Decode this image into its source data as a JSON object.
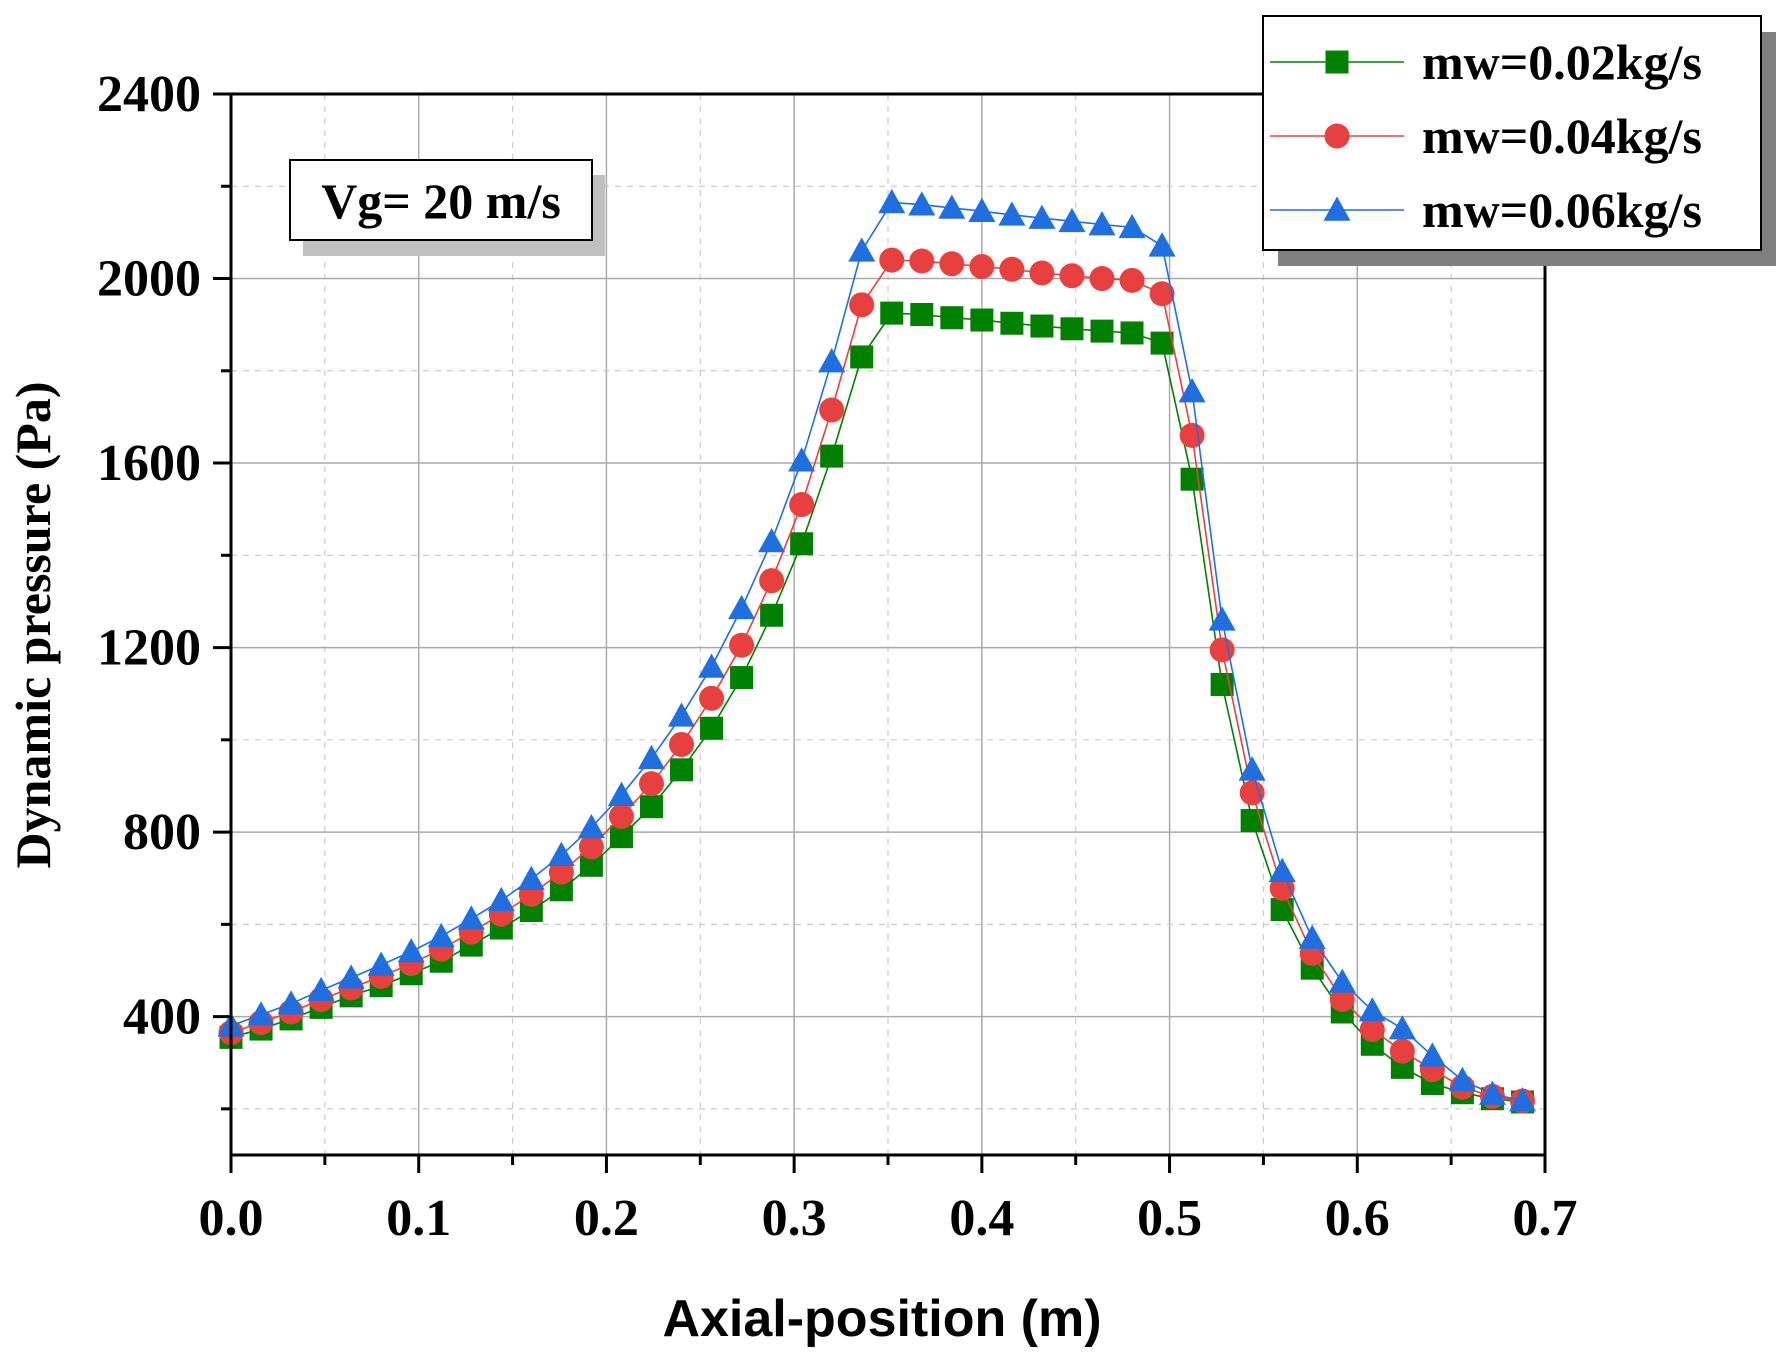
{
  "chart_data": {
    "type": "line",
    "title": "",
    "xlabel": "Axial-position (m)",
    "ylabel": "Dynamic pressure (Pa)",
    "xlim": [
      0,
      0.7
    ],
    "ylim": [
      100,
      2400
    ],
    "xticks": [
      0.0,
      0.1,
      0.2,
      0.3,
      0.4,
      0.5,
      0.6,
      0.7
    ],
    "xtick_labels": [
      "0.0",
      "0.1",
      "0.2",
      "0.3",
      "0.4",
      "0.5",
      "0.6",
      "0.7"
    ],
    "yticks": [
      400,
      800,
      1200,
      1600,
      2000,
      2400
    ],
    "ytick_labels": [
      "400",
      "800",
      "1200",
      "1600",
      "2000",
      "2400"
    ],
    "grid": true,
    "legend_position": "top-right",
    "annotation": "Vg= 20 m/s",
    "x": [
      0.0,
      0.016,
      0.032,
      0.048,
      0.064,
      0.08,
      0.096,
      0.112,
      0.128,
      0.144,
      0.16,
      0.176,
      0.192,
      0.208,
      0.224,
      0.24,
      0.256,
      0.272,
      0.288,
      0.304,
      0.32,
      0.336,
      0.352,
      0.368,
      0.384,
      0.4,
      0.416,
      0.432,
      0.448,
      0.464,
      0.48,
      0.496,
      0.512,
      0.528,
      0.544,
      0.56,
      0.576,
      0.592,
      0.608,
      0.624,
      0.64,
      0.656,
      0.672,
      0.688
    ],
    "series": [
      {
        "name": "mw=0.02kg/s",
        "color": "#008000",
        "marker": "square",
        "values": [
          355,
          373,
          395,
          420,
          445,
          467,
          493,
          520,
          555,
          592,
          630,
          675,
          728,
          790,
          855,
          935,
          1025,
          1135,
          1270,
          1425,
          1615,
          1830,
          1925,
          1922,
          1915,
          1910,
          1903,
          1897,
          1891,
          1886,
          1882,
          1860,
          1565,
          1120,
          825,
          632,
          505,
          410,
          340,
          290,
          255,
          235,
          222,
          215
        ]
      },
      {
        "name": "mw=0.04kg/s",
        "color": "#e8403f",
        "marker": "circle",
        "values": [
          365,
          387,
          410,
          437,
          462,
          487,
          515,
          546,
          583,
          622,
          665,
          713,
          768,
          834,
          905,
          990,
          1090,
          1205,
          1345,
          1510,
          1715,
          1943,
          2040,
          2038,
          2032,
          2026,
          2020,
          2012,
          2006,
          2000,
          1996,
          1967,
          1660,
          1195,
          885,
          678,
          537,
          437,
          372,
          325,
          285,
          247,
          227,
          217
        ]
      },
      {
        "name": "mw=0.06kg/s",
        "color": "#1f6fe0",
        "marker": "triangle",
        "values": [
          380,
          404,
          428,
          457,
          484,
          512,
          541,
          574,
          612,
          652,
          698,
          750,
          810,
          880,
          960,
          1052,
          1158,
          1285,
          1430,
          1605,
          1820,
          2060,
          2165,
          2160,
          2153,
          2146,
          2138,
          2131,
          2124,
          2117,
          2111,
          2071,
          1755,
          1260,
          935,
          715,
          570,
          475,
          413,
          374,
          315,
          262,
          232,
          218
        ]
      }
    ]
  }
}
